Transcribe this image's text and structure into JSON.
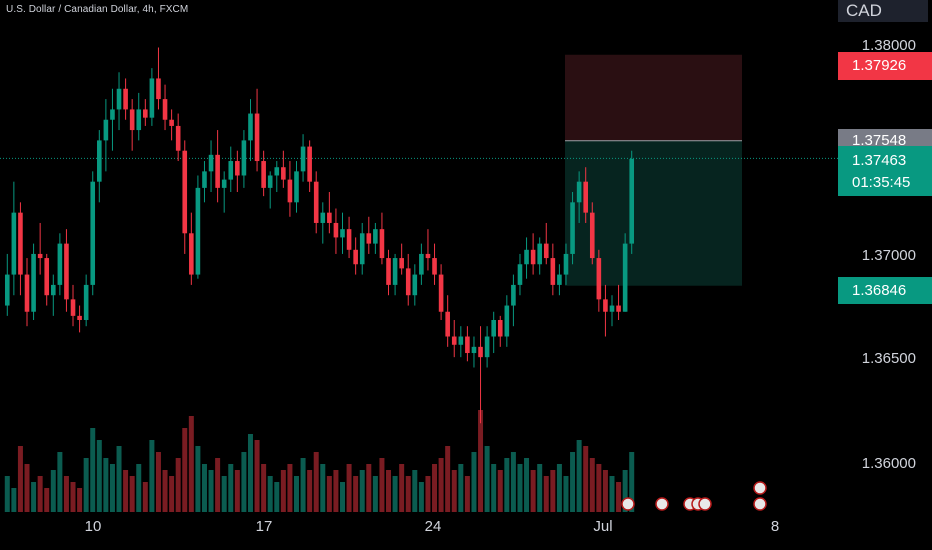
{
  "header": {
    "title": "U.S. Dollar / Canadian Dollar, 4h, FXCM",
    "currency": "CAD"
  },
  "price_badges": {
    "stop_loss": "1.37926",
    "entry": "1.37548",
    "current_price": "1.37463",
    "countdown": "01:35:45",
    "take_profit": "1.36846"
  },
  "price_axis": [
    "1.38000",
    "1.37000",
    "1.36500",
    "1.36000"
  ],
  "date_axis": [
    "10",
    "17",
    "24",
    "Jul",
    "8"
  ],
  "colors": {
    "up": "#089981",
    "down": "#f23645",
    "background": "#000000",
    "stop_zone": "#2a0f12",
    "target_zone": "#06241f",
    "vol_up": "#0b5c50",
    "vol_down": "#7a1c22"
  },
  "chart_data": {
    "type": "candlestick",
    "title": "U.S. Dollar / Canadian Dollar, 4h, FXCM",
    "timeframe": "4h",
    "ylim": [
      1.3575,
      1.3823
    ],
    "x_ticks": [
      "10",
      "17",
      "24",
      "Jul",
      "8"
    ],
    "y_ticks": [
      1.36,
      1.365,
      1.37,
      1.38
    ],
    "position": {
      "type": "short",
      "entry": 1.37548,
      "stop_loss": 1.37926,
      "take_profit": 1.36846,
      "current": 1.37463
    },
    "ohlc": [
      [
        1.3675,
        1.37,
        1.367,
        1.369
      ],
      [
        1.369,
        1.3735,
        1.368,
        1.372
      ],
      [
        1.372,
        1.3725,
        1.368,
        1.369
      ],
      [
        1.369,
        1.3698,
        1.3665,
        1.3672
      ],
      [
        1.3672,
        1.3705,
        1.3668,
        1.37
      ],
      [
        1.37,
        1.3715,
        1.369,
        1.3698
      ],
      [
        1.3698,
        1.37,
        1.3675,
        1.368
      ],
      [
        1.368,
        1.369,
        1.367,
        1.3685
      ],
      [
        1.3685,
        1.371,
        1.368,
        1.3705
      ],
      [
        1.3705,
        1.3712,
        1.3672,
        1.3678
      ],
      [
        1.3678,
        1.3685,
        1.3665,
        1.367
      ],
      [
        1.367,
        1.3675,
        1.3662,
        1.3668
      ],
      [
        1.3668,
        1.369,
        1.3665,
        1.3685
      ],
      [
        1.3685,
        1.374,
        1.368,
        1.3735
      ],
      [
        1.3735,
        1.376,
        1.3725,
        1.3755
      ],
      [
        1.3755,
        1.3775,
        1.374,
        1.3765
      ],
      [
        1.3765,
        1.378,
        1.375,
        1.377
      ],
      [
        1.377,
        1.3788,
        1.376,
        1.378
      ],
      [
        1.378,
        1.3785,
        1.3765,
        1.377
      ],
      [
        1.377,
        1.3775,
        1.375,
        1.376
      ],
      [
        1.376,
        1.3778,
        1.3755,
        1.377
      ],
      [
        1.377,
        1.3775,
        1.3762,
        1.3766
      ],
      [
        1.3766,
        1.379,
        1.3762,
        1.3785
      ],
      [
        1.3785,
        1.38,
        1.377,
        1.3775
      ],
      [
        1.3775,
        1.3782,
        1.376,
        1.3765
      ],
      [
        1.3765,
        1.377,
        1.3755,
        1.3762
      ],
      [
        1.3762,
        1.3768,
        1.3745,
        1.375
      ],
      [
        1.375,
        1.3755,
        1.37,
        1.371
      ],
      [
        1.371,
        1.372,
        1.3685,
        1.369
      ],
      [
        1.369,
        1.3738,
        1.3688,
        1.3732
      ],
      [
        1.3732,
        1.3745,
        1.3725,
        1.374
      ],
      [
        1.374,
        1.3755,
        1.373,
        1.3748
      ],
      [
        1.3748,
        1.376,
        1.3725,
        1.3732
      ],
      [
        1.3732,
        1.374,
        1.372,
        1.3736
      ],
      [
        1.3736,
        1.3752,
        1.373,
        1.3745
      ],
      [
        1.3745,
        1.375,
        1.373,
        1.3738
      ],
      [
        1.3738,
        1.376,
        1.3732,
        1.3755
      ],
      [
        1.3755,
        1.3775,
        1.3745,
        1.3768
      ],
      [
        1.3768,
        1.378,
        1.374,
        1.3745
      ],
      [
        1.3745,
        1.375,
        1.3728,
        1.3732
      ],
      [
        1.3732,
        1.374,
        1.3722,
        1.3738
      ],
      [
        1.3738,
        1.3745,
        1.373,
        1.3742
      ],
      [
        1.3742,
        1.375,
        1.3732,
        1.3736
      ],
      [
        1.3736,
        1.3745,
        1.3718,
        1.3725
      ],
      [
        1.3725,
        1.3745,
        1.372,
        1.374
      ],
      [
        1.374,
        1.3758,
        1.3735,
        1.3752
      ],
      [
        1.3752,
        1.3755,
        1.373,
        1.3735
      ],
      [
        1.3735,
        1.374,
        1.371,
        1.3715
      ],
      [
        1.3715,
        1.3725,
        1.3705,
        1.372
      ],
      [
        1.372,
        1.373,
        1.371,
        1.3715
      ],
      [
        1.3715,
        1.3722,
        1.37,
        1.3708
      ],
      [
        1.3708,
        1.372,
        1.37,
        1.3712
      ],
      [
        1.3712,
        1.3718,
        1.3698,
        1.3702
      ],
      [
        1.3702,
        1.3708,
        1.369,
        1.3695
      ],
      [
        1.3695,
        1.3715,
        1.369,
        1.371
      ],
      [
        1.371,
        1.3718,
        1.37,
        1.3705
      ],
      [
        1.3705,
        1.3715,
        1.37,
        1.3712
      ],
      [
        1.3712,
        1.372,
        1.3695,
        1.3698
      ],
      [
        1.3698,
        1.3702,
        1.368,
        1.3685
      ],
      [
        1.3685,
        1.37,
        1.368,
        1.3698
      ],
      [
        1.3698,
        1.3705,
        1.369,
        1.3693
      ],
      [
        1.3693,
        1.37,
        1.3675,
        1.368
      ],
      [
        1.368,
        1.3695,
        1.3675,
        1.369
      ],
      [
        1.369,
        1.3705,
        1.3685,
        1.37
      ],
      [
        1.37,
        1.3712,
        1.3692,
        1.3698
      ],
      [
        1.3698,
        1.3705,
        1.3685,
        1.369
      ],
      [
        1.369,
        1.3695,
        1.3668,
        1.3672
      ],
      [
        1.3672,
        1.368,
        1.3655,
        1.366
      ],
      [
        1.366,
        1.3668,
        1.365,
        1.3656
      ],
      [
        1.3656,
        1.3665,
        1.365,
        1.366
      ],
      [
        1.366,
        1.3665,
        1.3648,
        1.3652
      ],
      [
        1.3652,
        1.366,
        1.3645,
        1.3655
      ],
      [
        1.3655,
        1.3665,
        1.3618,
        1.365
      ],
      [
        1.365,
        1.3665,
        1.3645,
        1.366
      ],
      [
        1.366,
        1.3672,
        1.3652,
        1.3668
      ],
      [
        1.3668,
        1.367,
        1.3655,
        1.366
      ],
      [
        1.366,
        1.368,
        1.3655,
        1.3675
      ],
      [
        1.3675,
        1.369,
        1.3665,
        1.3685
      ],
      [
        1.3685,
        1.37,
        1.368,
        1.3695
      ],
      [
        1.3695,
        1.3708,
        1.3688,
        1.3702
      ],
      [
        1.3702,
        1.371,
        1.369,
        1.3695
      ],
      [
        1.3695,
        1.3708,
        1.369,
        1.3705
      ],
      [
        1.3705,
        1.3715,
        1.3695,
        1.3698
      ],
      [
        1.3698,
        1.3705,
        1.368,
        1.3685
      ],
      [
        1.3685,
        1.3695,
        1.368,
        1.369
      ],
      [
        1.369,
        1.3705,
        1.3685,
        1.37
      ],
      [
        1.37,
        1.373,
        1.3695,
        1.3725
      ],
      [
        1.3725,
        1.374,
        1.3715,
        1.3735
      ],
      [
        1.3735,
        1.3742,
        1.3715,
        1.372
      ],
      [
        1.372,
        1.3725,
        1.3695,
        1.3698
      ],
      [
        1.3698,
        1.3702,
        1.3672,
        1.3678
      ],
      [
        1.3678,
        1.3685,
        1.366,
        1.3672
      ],
      [
        1.3672,
        1.368,
        1.3665,
        1.3675
      ],
      [
        1.3675,
        1.3685,
        1.3668,
        1.3672
      ],
      [
        1.3672,
        1.371,
        1.3672,
        1.3705
      ],
      [
        1.3705,
        1.375,
        1.37,
        1.3746
      ]
    ],
    "volume_relative": [
      0.3,
      0.2,
      0.55,
      0.4,
      0.25,
      0.3,
      0.2,
      0.35,
      0.5,
      0.3,
      0.25,
      0.2,
      0.45,
      0.7,
      0.6,
      0.45,
      0.4,
      0.55,
      0.35,
      0.3,
      0.4,
      0.25,
      0.6,
      0.5,
      0.35,
      0.3,
      0.45,
      0.7,
      0.8,
      0.55,
      0.4,
      0.35,
      0.45,
      0.3,
      0.4,
      0.35,
      0.5,
      0.65,
      0.6,
      0.4,
      0.3,
      0.25,
      0.35,
      0.4,
      0.3,
      0.45,
      0.35,
      0.5,
      0.4,
      0.3,
      0.35,
      0.25,
      0.4,
      0.3,
      0.35,
      0.4,
      0.3,
      0.45,
      0.35,
      0.3,
      0.4,
      0.3,
      0.35,
      0.25,
      0.3,
      0.4,
      0.45,
      0.55,
      0.35,
      0.4,
      0.3,
      0.5,
      0.85,
      0.55,
      0.4,
      0.35,
      0.45,
      0.5,
      0.4,
      0.45,
      0.35,
      0.4,
      0.3,
      0.35,
      0.4,
      0.3,
      0.5,
      0.6,
      0.55,
      0.45,
      0.4,
      0.35,
      0.3,
      0.25,
      0.35,
      0.5
    ]
  }
}
